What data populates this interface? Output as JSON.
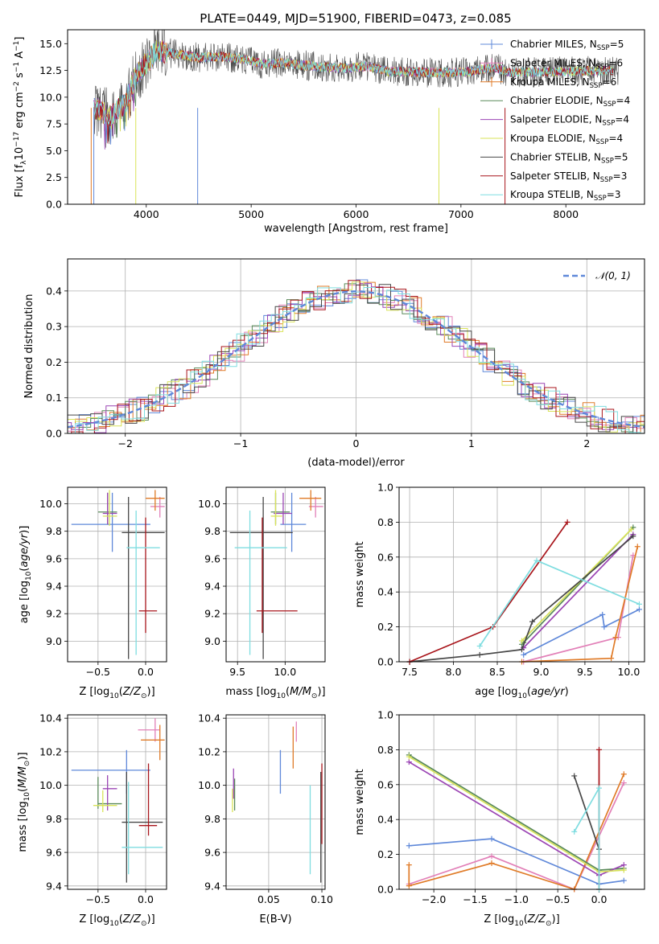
{
  "series": [
    {
      "name": "Chabrier MILES, N$_{SSP}$=5",
      "label": "Chabrier MILES, N",
      "sub": "SSP",
      "n": "=5",
      "color": "#5f88d9"
    },
    {
      "name": "Salpeter MILES, N$_{SSP}$=6",
      "label": "Salpeter MILES, N",
      "sub": "SSP",
      "n": "=6",
      "color": "#e280b8"
    },
    {
      "name": "Kroupa MILES, N$_{SSP}$=6",
      "label": "Kroupa MILES, N",
      "sub": "SSP",
      "n": "=6",
      "color": "#e07b28"
    },
    {
      "name": "Chabrier ELODIE, N$_{SSP}$=4",
      "label": "Chabrier ELODIE, N",
      "sub": "SSP",
      "n": "=4",
      "color": "#5a8a5a"
    },
    {
      "name": "Salpeter ELODIE, N$_{SSP}$=4",
      "label": "Salpeter ELODIE, N",
      "sub": "SSP",
      "n": "=4",
      "color": "#9b45b4"
    },
    {
      "name": "Kroupa ELODIE, N$_{SSP}$=4",
      "label": "Kroupa ELODIE, N",
      "sub": "SSP",
      "n": "=4",
      "color": "#d9e35a"
    },
    {
      "name": "Chabrier STELIB, N$_{SSP}$=5",
      "label": "Chabrier STELIB, N",
      "sub": "SSP",
      "n": "=5",
      "color": "#474747"
    },
    {
      "name": "Salpeter STELIB, N$_{SSP}$=3",
      "label": "Salpeter STELIB, N",
      "sub": "SSP",
      "n": "=3",
      "color": "#a8151b"
    },
    {
      "name": "Kroupa STELIB, N$_{SSP}$=3",
      "label": "Kroupa STELIB, N",
      "sub": "SSP",
      "n": "=3",
      "color": "#7fdde0"
    }
  ],
  "chart_data": [
    {
      "id": "spectrum",
      "type": "line",
      "title": "PLATE=0449, MJD=51900, FIBERID=0473, z=0.085",
      "xlabel": "wavelength [Angstrom, rest frame]",
      "ylabel": "Flux [f",
      "xlim": [
        3250,
        8750
      ],
      "ylim": [
        0,
        16.3
      ],
      "xticks": [
        4000,
        5000,
        6000,
        7000,
        8000
      ],
      "yticks": [
        0.0,
        2.5,
        5.0,
        7.5,
        10.0,
        12.5,
        15.0
      ],
      "legend": "upper right",
      "envelope": [
        [
          3500,
          9.0
        ],
        [
          3650,
          8.2
        ],
        [
          3800,
          9.5
        ],
        [
          3900,
          12.0
        ],
        [
          4000,
          13.2
        ],
        [
          4100,
          14.3
        ],
        [
          4300,
          14.0
        ],
        [
          4500,
          13.7
        ],
        [
          4700,
          13.8
        ],
        [
          4900,
          13.6
        ],
        [
          5100,
          13.1
        ],
        [
          5300,
          13.2
        ],
        [
          5500,
          13.0
        ],
        [
          5700,
          12.8
        ],
        [
          5900,
          12.7
        ],
        [
          6100,
          12.9
        ],
        [
          6300,
          12.4
        ],
        [
          6500,
          12.4
        ],
        [
          6700,
          12.3
        ],
        [
          6900,
          12.3
        ],
        [
          7100,
          12.4
        ],
        [
          7300,
          12.8
        ],
        [
          7420,
          12.5
        ]
      ]
    },
    {
      "id": "hist",
      "type": "bar",
      "xlabel": "(data-model)/error",
      "ylabel": "Normed distribution",
      "xlim": [
        -2.5,
        2.5
      ],
      "ylim": [
        0,
        0.49
      ],
      "xticks": [
        -2,
        -1,
        0,
        1,
        2
      ],
      "yticks": [
        0.0,
        0.1,
        0.2,
        0.3,
        0.4
      ],
      "legend_label": "𝒩(0, 1)",
      "legend_color": "#5f88d9",
      "grid": true
    },
    {
      "id": "age_Z",
      "type": "scatter",
      "xlabel": "Z [log",
      "xlim": [
        -0.82,
        0.22
      ],
      "ylim": [
        8.85,
        10.12
      ],
      "xticks": [
        -0.5,
        0.0
      ],
      "yticks": [
        9.0,
        9.2,
        9.4,
        9.6,
        9.8,
        10.0
      ],
      "ylabel": "age  [log",
      "points": [
        {
          "s": 0,
          "x": -0.35,
          "y": 9.85,
          "x0": -0.78,
          "x1": 0.05,
          "y0": 9.65,
          "y1": 10.08
        },
        {
          "s": 1,
          "x": 0.15,
          "y": 9.98,
          "x0": 0.05,
          "x1": 0.2,
          "y0": 9.9,
          "y1": 10.05
        },
        {
          "s": 2,
          "x": 0.1,
          "y": 10.04,
          "x0": 0.0,
          "x1": 0.2,
          "y0": 9.95,
          "y1": 10.1
        },
        {
          "s": 3,
          "x": -0.4,
          "y": 9.94,
          "x0": -0.5,
          "x1": -0.3,
          "y0": 9.85,
          "y1": 10.08
        },
        {
          "s": 4,
          "x": -0.4,
          "y": 9.93,
          "x0": -0.45,
          "x1": -0.3,
          "y0": 9.85,
          "y1": 10.08
        },
        {
          "s": 5,
          "x": -0.38,
          "y": 9.91,
          "x0": -0.45,
          "x1": -0.3,
          "y0": 9.84,
          "y1": 10.1
        },
        {
          "s": 6,
          "x": -0.18,
          "y": 9.79,
          "x0": -0.25,
          "x1": 0.2,
          "y0": 8.87,
          "y1": 10.05
        },
        {
          "s": 7,
          "x": 0.0,
          "y": 9.22,
          "x0": -0.07,
          "x1": 0.12,
          "y0": 9.06,
          "y1": 9.9
        },
        {
          "s": 8,
          "x": -0.1,
          "y": 9.68,
          "x0": -0.2,
          "x1": 0.15,
          "y0": 8.9,
          "y1": 9.95
        }
      ]
    },
    {
      "id": "age_mass",
      "type": "scatter",
      "xlabel": "mass [log",
      "xlim": [
        9.38,
        10.42
      ],
      "ylim": [
        8.85,
        10.12
      ],
      "xticks": [
        9.5,
        10.0
      ],
      "yticks": [
        9.0,
        9.2,
        9.4,
        9.6,
        9.8,
        10.0
      ],
      "points": [
        {
          "s": 0,
          "x": 10.07,
          "y": 9.85,
          "x0": 9.95,
          "x1": 10.22,
          "y0": 9.65,
          "y1": 10.08
        },
        {
          "s": 1,
          "x": 10.32,
          "y": 9.98,
          "x0": 10.25,
          "x1": 10.4,
          "y0": 9.9,
          "y1": 10.05
        },
        {
          "s": 2,
          "x": 10.27,
          "y": 10.04,
          "x0": 10.15,
          "x1": 10.38,
          "y0": 9.95,
          "y1": 10.1
        },
        {
          "s": 3,
          "x": 9.9,
          "y": 9.94,
          "x0": 9.85,
          "x1": 10.05,
          "y0": 9.85,
          "y1": 10.08
        },
        {
          "s": 4,
          "x": 9.98,
          "y": 9.93,
          "x0": 9.88,
          "x1": 10.07,
          "y0": 9.85,
          "y1": 10.08
        },
        {
          "s": 5,
          "x": 9.9,
          "y": 9.91,
          "x0": 9.85,
          "x1": 9.97,
          "y0": 9.84,
          "y1": 10.1
        },
        {
          "s": 6,
          "x": 9.77,
          "y": 9.79,
          "x0": 9.42,
          "x1": 10.08,
          "y0": 8.87,
          "y1": 10.05
        },
        {
          "s": 7,
          "x": 9.76,
          "y": 9.22,
          "x0": 9.7,
          "x1": 10.13,
          "y0": 9.06,
          "y1": 9.9
        },
        {
          "s": 8,
          "x": 9.63,
          "y": 9.68,
          "x0": 9.47,
          "x1": 10.02,
          "y0": 8.9,
          "y1": 9.95
        }
      ]
    },
    {
      "id": "mw_age",
      "type": "line",
      "xlabel": "age  [log",
      "ylabel": "mass weight",
      "xlim": [
        7.38,
        10.18
      ],
      "ylim": [
        0,
        1
      ],
      "xticks": [
        7.5,
        8.0,
        8.5,
        9.0,
        9.5,
        10.0
      ],
      "yticks": [
        0.0,
        0.2,
        0.4,
        0.6,
        0.8,
        1.0
      ],
      "lines": [
        {
          "s": 0,
          "pts": [
            [
              8.8,
              0.04
            ],
            [
              9.7,
              0.27
            ],
            [
              9.72,
              0.2
            ],
            [
              10.12,
              0.3
            ]
          ]
        },
        {
          "s": 1,
          "pts": [
            [
              8.8,
              0.0
            ],
            [
              9.88,
              0.14
            ],
            [
              10.05,
              0.61
            ]
          ]
        },
        {
          "s": 2,
          "pts": [
            [
              8.78,
              0.0
            ],
            [
              9.8,
              0.02
            ],
            [
              9.85,
              0.14
            ],
            [
              10.1,
              0.66
            ]
          ]
        },
        {
          "s": 3,
          "pts": [
            [
              8.78,
              0.1
            ],
            [
              8.8,
              0.11
            ],
            [
              10.05,
              0.77
            ]
          ]
        },
        {
          "s": 4,
          "pts": [
            [
              8.8,
              0.08
            ],
            [
              10.05,
              0.73
            ]
          ]
        },
        {
          "s": 5,
          "pts": [
            [
              8.78,
              0.12
            ],
            [
              10.03,
              0.76
            ]
          ]
        },
        {
          "s": 6,
          "pts": [
            [
              7.5,
              0.0
            ],
            [
              8.3,
              0.04
            ],
            [
              8.78,
              0.07
            ],
            [
              8.9,
              0.23
            ],
            [
              10.05,
              0.72
            ]
          ]
        },
        {
          "s": 7,
          "pts": [
            [
              7.5,
              0.0
            ],
            [
              8.45,
              0.2
            ],
            [
              9.3,
              0.8
            ]
          ]
        },
        {
          "s": 8,
          "pts": [
            [
              8.3,
              0.09
            ],
            [
              8.95,
              0.58
            ],
            [
              10.12,
              0.33
            ]
          ]
        }
      ]
    },
    {
      "id": "mass_Z",
      "type": "scatter",
      "xlabel": "Z [log",
      "ylabel": "mass [log",
      "xlim": [
        -0.82,
        0.22
      ],
      "ylim": [
        9.38,
        10.42
      ],
      "xticks": [
        -0.5,
        0.0
      ],
      "yticks": [
        9.4,
        9.6,
        9.8,
        10.0,
        10.2,
        10.4
      ],
      "points": [
        {
          "s": 0,
          "x": -0.2,
          "y": 10.09,
          "x0": -0.78,
          "x1": 0.05,
          "y0": 9.95,
          "y1": 10.21
        },
        {
          "s": 1,
          "x": 0.1,
          "y": 10.33,
          "x0": -0.08,
          "x1": 0.15,
          "y0": 10.26,
          "y1": 10.4
        },
        {
          "s": 2,
          "x": 0.15,
          "y": 10.27,
          "x0": -0.05,
          "x1": 0.2,
          "y0": 10.15,
          "y1": 10.36
        },
        {
          "s": 3,
          "x": -0.5,
          "y": 9.89,
          "x0": -0.5,
          "x1": -0.25,
          "y0": 9.86,
          "y1": 10.05
        },
        {
          "s": 4,
          "x": -0.4,
          "y": 9.98,
          "x0": -0.45,
          "x1": -0.3,
          "y0": 9.85,
          "y1": 10.06
        },
        {
          "s": 5,
          "x": -0.45,
          "y": 9.88,
          "x0": -0.55,
          "x1": -0.3,
          "y0": 9.84,
          "y1": 9.97
        },
        {
          "s": 6,
          "x": -0.2,
          "y": 9.78,
          "x0": -0.25,
          "x1": 0.18,
          "y0": 9.42,
          "y1": 10.08
        },
        {
          "s": 7,
          "x": 0.03,
          "y": 9.76,
          "x0": -0.07,
          "x1": 0.12,
          "y0": 9.7,
          "y1": 10.13
        },
        {
          "s": 8,
          "x": -0.18,
          "y": 9.63,
          "x0": -0.25,
          "x1": 0.18,
          "y0": 9.47,
          "y1": 10.02
        }
      ]
    },
    {
      "id": "mass_ebv",
      "type": "scatter",
      "xlabel": "E(B-V)",
      "xlim": [
        0.01,
        0.103
      ],
      "ylim": [
        9.38,
        10.42
      ],
      "xticks": [
        0.05,
        0.1
      ],
      "yticks": [
        9.4,
        9.6,
        9.8,
        10.0,
        10.2,
        10.4
      ],
      "points": [
        {
          "s": 0,
          "x": 0.061,
          "y": 10.09,
          "y0": 9.95,
          "y1": 10.21
        },
        {
          "s": 1,
          "x": 0.076,
          "y": 10.33,
          "y0": 10.26,
          "y1": 10.38
        },
        {
          "s": 2,
          "x": 0.073,
          "y": 10.27,
          "y0": 10.1,
          "y1": 10.35
        },
        {
          "s": 3,
          "x": 0.018,
          "y": 9.9,
          "y0": 9.85,
          "y1": 10.04
        },
        {
          "s": 4,
          "x": 0.017,
          "y": 10.0,
          "y0": 9.92,
          "y1": 10.1
        },
        {
          "s": 5,
          "x": 0.016,
          "y": 9.88,
          "y0": 9.84,
          "y1": 9.98
        },
        {
          "s": 6,
          "x": 0.099,
          "y": 9.78,
          "y0": 9.42,
          "y1": 10.08
        },
        {
          "s": 7,
          "x": 0.1,
          "y": 9.76,
          "y0": 9.65,
          "y1": 10.13
        },
        {
          "s": 8,
          "x": 0.089,
          "y": 9.63,
          "y0": 9.47,
          "y1": 10.0
        }
      ]
    },
    {
      "id": "mw_Z",
      "type": "line",
      "xlabel": "Z [log",
      "ylabel": "mass weight",
      "xlim": [
        -2.42,
        0.55
      ],
      "ylim": [
        0,
        1
      ],
      "xticks": [
        -2.0,
        -1.5,
        -1.0,
        -0.5,
        0.0
      ],
      "yticks": [
        0.0,
        0.2,
        0.4,
        0.6,
        0.8,
        1.0
      ],
      "lines": [
        {
          "s": 0,
          "pts": [
            [
              -2.3,
              0.25
            ],
            [
              -1.3,
              0.29
            ],
            [
              0.0,
              0.03
            ],
            [
              0.3,
              0.05
            ]
          ]
        },
        {
          "s": 1,
          "pts": [
            [
              -2.3,
              0.03
            ],
            [
              -1.3,
              0.19
            ],
            [
              -0.3,
              0.0
            ],
            [
              0.3,
              0.61
            ]
          ]
        },
        {
          "s": 2,
          "pts": [
            [
              -2.3,
              0.14
            ],
            [
              -2.3,
              0.02
            ],
            [
              -1.3,
              0.15
            ],
            [
              -0.3,
              0.0
            ],
            [
              0.3,
              0.66
            ]
          ]
        },
        {
          "s": 3,
          "pts": [
            [
              -2.3,
              0.77
            ],
            [
              0.0,
              0.11
            ],
            [
              0.3,
              0.12
            ]
          ]
        },
        {
          "s": 4,
          "pts": [
            [
              -2.3,
              0.73
            ],
            [
              0.0,
              0.08
            ],
            [
              0.3,
              0.14
            ]
          ]
        },
        {
          "s": 5,
          "pts": [
            [
              -2.3,
              0.76
            ],
            [
              0.0,
              0.1
            ],
            [
              0.3,
              0.11
            ]
          ]
        },
        {
          "s": 6,
          "pts": [
            [
              -0.3,
              0.65
            ],
            [
              0.0,
              0.23
            ]
          ]
        },
        {
          "s": 7,
          "pts": [
            [
              0.0,
              0.8
            ],
            [
              0.0,
              0.0
            ]
          ]
        },
        {
          "s": 8,
          "pts": [
            [
              -0.3,
              0.33
            ],
            [
              0.0,
              0.58
            ],
            [
              0.0,
              0.0
            ]
          ]
        }
      ]
    }
  ]
}
